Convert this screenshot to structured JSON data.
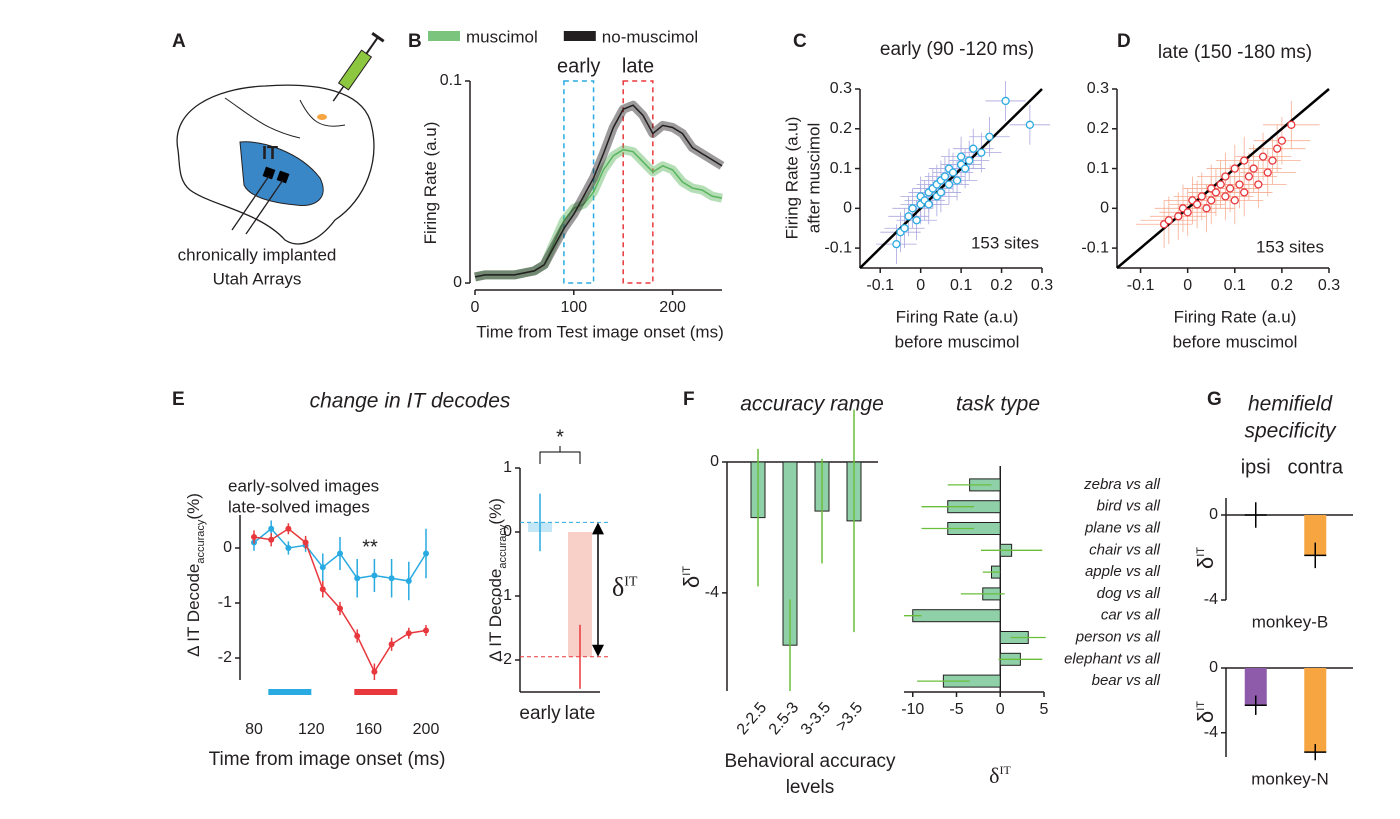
{
  "diagram": {
    "panel": "A",
    "region_label": "IT",
    "caption": [
      "chronically implanted",
      "Utah Arrays"
    ]
  },
  "chart_data": [
    {
      "type": "line",
      "panel": "B",
      "xlabel": "Time from Test image onset (ms)",
      "ylabel": "Firing Rate (a.u)",
      "x": [
        0,
        10,
        20,
        30,
        40,
        50,
        60,
        70,
        80,
        90,
        100,
        110,
        120,
        130,
        140,
        150,
        160,
        170,
        180,
        190,
        200,
        210,
        220,
        230,
        240,
        250
      ],
      "series": [
        {
          "name": "muscimol",
          "color": "#5ab55e",
          "values": [
            0.003,
            0.004,
            0.004,
            0.004,
            0.004,
            0.005,
            0.006,
            0.009,
            0.02,
            0.031,
            0.037,
            0.039,
            0.045,
            0.056,
            0.063,
            0.066,
            0.065,
            0.06,
            0.055,
            0.058,
            0.056,
            0.05,
            0.047,
            0.046,
            0.043,
            0.042
          ]
        },
        {
          "name": "no-muscimol",
          "color": "#231f20",
          "values": [
            0.003,
            0.004,
            0.004,
            0.004,
            0.004,
            0.005,
            0.006,
            0.009,
            0.018,
            0.027,
            0.034,
            0.043,
            0.052,
            0.064,
            0.077,
            0.086,
            0.088,
            0.083,
            0.074,
            0.078,
            0.077,
            0.074,
            0.067,
            0.064,
            0.061,
            0.058
          ]
        }
      ],
      "xlim": [
        0,
        250
      ],
      "xticks": [
        0,
        100,
        200
      ],
      "ylim": [
        0,
        0.1
      ],
      "yticks": [
        0,
        0.1
      ],
      "windows": [
        {
          "label": "early",
          "start": 90,
          "end": 120,
          "color": "#29abe2"
        },
        {
          "label": "late",
          "start": 150,
          "end": 180,
          "color": "#e8383d"
        }
      ]
    },
    {
      "type": "scatter",
      "panel": "C",
      "title": "early (90 -120 ms)",
      "color": "#29abe2",
      "error_color": "#aaa6df",
      "xlabel": [
        "Firing Rate (a.u)",
        "before muscimol"
      ],
      "ylabel": [
        "Firing Rate (a.u)",
        "after muscimol"
      ],
      "annotation": "153 sites",
      "x": [
        -0.06,
        -0.05,
        -0.04,
        -0.03,
        -0.02,
        -0.01,
        0,
        0,
        0.01,
        0.02,
        0.02,
        0.03,
        0.04,
        0.04,
        0.05,
        0.05,
        0.06,
        0.07,
        0.07,
        0.08,
        0.09,
        0.1,
        0.1,
        0.11,
        0.12,
        0.13,
        0.15,
        0.17,
        0.21,
        0.27
      ],
      "y": [
        -0.09,
        -0.06,
        -0.05,
        -0.02,
        0,
        -0.03,
        0.01,
        0.03,
        0.02,
        0.04,
        0.01,
        0.05,
        0.03,
        0.06,
        0.07,
        0.04,
        0.08,
        0.06,
        0.1,
        0.09,
        0.07,
        0.11,
        0.13,
        0.1,
        0.12,
        0.15,
        0.14,
        0.18,
        0.27,
        0.21
      ],
      "error": 0.05,
      "xlim": [
        -0.15,
        0.3
      ],
      "ylim": [
        -0.15,
        0.3
      ],
      "xticks": [
        -0.1,
        0,
        0.1,
        0.2,
        0.3
      ],
      "yticks": [
        -0.1,
        0,
        0.1,
        0.2,
        0.3
      ],
      "diagonal": true
    },
    {
      "type": "scatter",
      "panel": "D",
      "title": "late (150 -180 ms)",
      "color": "#e8383d",
      "error_color": "#f5ad92",
      "xlabel": [
        "Firing Rate (a.u)",
        "before muscimol"
      ],
      "annotation": "153 sites",
      "x": [
        -0.05,
        -0.04,
        -0.02,
        -0.01,
        0,
        0.01,
        0.02,
        0.03,
        0.04,
        0.05,
        0.05,
        0.06,
        0.07,
        0.08,
        0.08,
        0.09,
        0.1,
        0.1,
        0.11,
        0.12,
        0.12,
        0.13,
        0.14,
        0.15,
        0.16,
        0.17,
        0.18,
        0.19,
        0.2,
        0.22
      ],
      "y": [
        -0.04,
        -0.03,
        -0.02,
        0,
        -0.01,
        0.02,
        0.01,
        0.03,
        0,
        0.05,
        0.02,
        0.04,
        0.06,
        0.03,
        0.08,
        0.05,
        0.02,
        0.1,
        0.06,
        0.04,
        0.12,
        0.08,
        0.1,
        0.06,
        0.13,
        0.09,
        0.12,
        0.15,
        0.17,
        0.21
      ],
      "error": 0.06,
      "xlim": [
        -0.15,
        0.3
      ],
      "ylim": [
        -0.15,
        0.3
      ],
      "xticks": [
        -0.1,
        0,
        0.1,
        0.2,
        0.3
      ],
      "yticks": [
        -0.1,
        0,
        0.1,
        0.2,
        0.3
      ],
      "diagonal": true
    },
    {
      "type": "errorline",
      "panel": "E",
      "title": "change in IT decodes",
      "ylabel": "Δ IT Decode",
      "ylabel_sub": "accuracy",
      "ylabel_unit": "(%)",
      "xlabel": "Time from image onset (ms)",
      "annotation": "**",
      "x": [
        80,
        92,
        104,
        116,
        128,
        140,
        152,
        164,
        176,
        188,
        200
      ],
      "series": [
        {
          "name": "early-solved images",
          "color": "#29abe2",
          "values": [
            0.1,
            0.35,
            0.0,
            0.05,
            -0.35,
            -0.1,
            -0.55,
            -0.5,
            -0.55,
            -0.6,
            -0.1
          ],
          "errors": [
            0.15,
            0.15,
            0.12,
            0.12,
            0.25,
            0.3,
            0.35,
            0.3,
            0.35,
            0.35,
            0.45
          ]
        },
        {
          "name": "late-solved images",
          "color": "#e8383d",
          "values": [
            0.2,
            0.15,
            0.35,
            0.1,
            -0.75,
            -1.1,
            -1.6,
            -2.25,
            -1.75,
            -1.55,
            -1.5
          ],
          "errors": [
            0.12,
            0.12,
            0.1,
            0.12,
            0.15,
            0.12,
            0.12,
            0.15,
            0.12,
            0.1,
            0.1
          ]
        }
      ],
      "xlim": [
        80,
        200
      ],
      "xticks": [
        80,
        120,
        160,
        200
      ],
      "ylim": [
        -2.4,
        0.6
      ],
      "yticks": [
        0,
        -1,
        -2
      ],
      "windows": [
        {
          "start": 90,
          "end": 120,
          "color": "#29abe2"
        },
        {
          "start": 150,
          "end": 180,
          "color": "#e8383d"
        }
      ]
    },
    {
      "type": "bar",
      "ylabel": "Δ IT Decode",
      "ylabel_sub": "accuracy",
      "ylabel_unit": "(%)",
      "categories": [
        "early",
        "late"
      ],
      "colors": [
        "#c3e7f6",
        "#f9d0c7"
      ],
      "error_colors": [
        "#29abe2",
        "#e8383d"
      ],
      "label_colors": [
        "#29abe2",
        "#e8383d"
      ],
      "values": [
        0.15,
        -1.95
      ],
      "errors": [
        0.45,
        0.5
      ],
      "ylim": [
        -2.5,
        1
      ],
      "yticks": [
        1,
        0,
        -1,
        -2
      ],
      "annotation": "*",
      "symbol": "δ",
      "symbol_sup": "IT"
    },
    {
      "type": "bar",
      "panel": "F",
      "title": "accuracy range",
      "ylabel": "δ",
      "ylabel_sup": "IT",
      "xlabel": [
        "Behavioral accuracy",
        "levels"
      ],
      "categories": [
        "2-2.5",
        "2.5-3",
        "3-3.5",
        ">3.5"
      ],
      "values": [
        -1.7,
        -5.6,
        -1.5,
        -1.8
      ],
      "errors": [
        2.1,
        1.4,
        1.6,
        3.4
      ],
      "color": "#8fd0a8",
      "error_color": "#6abf3a",
      "ylim": [
        -7,
        0
      ],
      "yticks": [
        0,
        -4
      ]
    },
    {
      "type": "hbar",
      "title": "task type",
      "xlabel": "δ",
      "xlabel_sup": "IT",
      "categories": [
        "zebra vs all",
        "bird vs all",
        "plane vs all",
        "chair vs all",
        "apple vs all",
        "dog vs all",
        "car vs all",
        "person vs all",
        "elephant vs all",
        "bear vs all"
      ],
      "values": [
        -3.5,
        -6,
        -6,
        1.3,
        -1,
        -2,
        -10,
        3.2,
        2.3,
        -6.5
      ],
      "errors": [
        2.5,
        3,
        3,
        3.5,
        1,
        2.5,
        1,
        2,
        2.5,
        3
      ],
      "color": "#8fd0a8",
      "error_color": "#6abf3a",
      "xlim": [
        -11,
        5
      ],
      "xticks": [
        -10,
        -5,
        0,
        5
      ]
    },
    {
      "type": "bar",
      "panel": "G",
      "title": [
        "hemifield",
        "specificity"
      ],
      "ylabel": "δ",
      "ylabel_sup": "IT",
      "annotation": "monkey-B",
      "categories": [
        "ipsi",
        "contra"
      ],
      "colors": [
        "#8e5bab",
        "#f7a541"
      ],
      "label_colors": [
        "#8e5bab",
        "#f7a541"
      ],
      "error_color": "#000000",
      "values": [
        0,
        -1.9
      ],
      "errors": [
        0.6,
        0.6
      ],
      "ylim": [
        -4,
        0.8
      ],
      "yticks": [
        0,
        -4
      ]
    },
    {
      "type": "bar",
      "ylabel": "δ",
      "ylabel_sup": "IT",
      "annotation": "monkey-N",
      "categories": [
        null,
        null
      ],
      "colors": [
        "#8e5bab",
        "#f7a541"
      ],
      "error_color": "#000000",
      "values": [
        -2.3,
        -5.2
      ],
      "errors": [
        0.6,
        0.5
      ],
      "ylim": [
        -5.5,
        0
      ],
      "yticks": [
        0,
        -4
      ]
    }
  ]
}
